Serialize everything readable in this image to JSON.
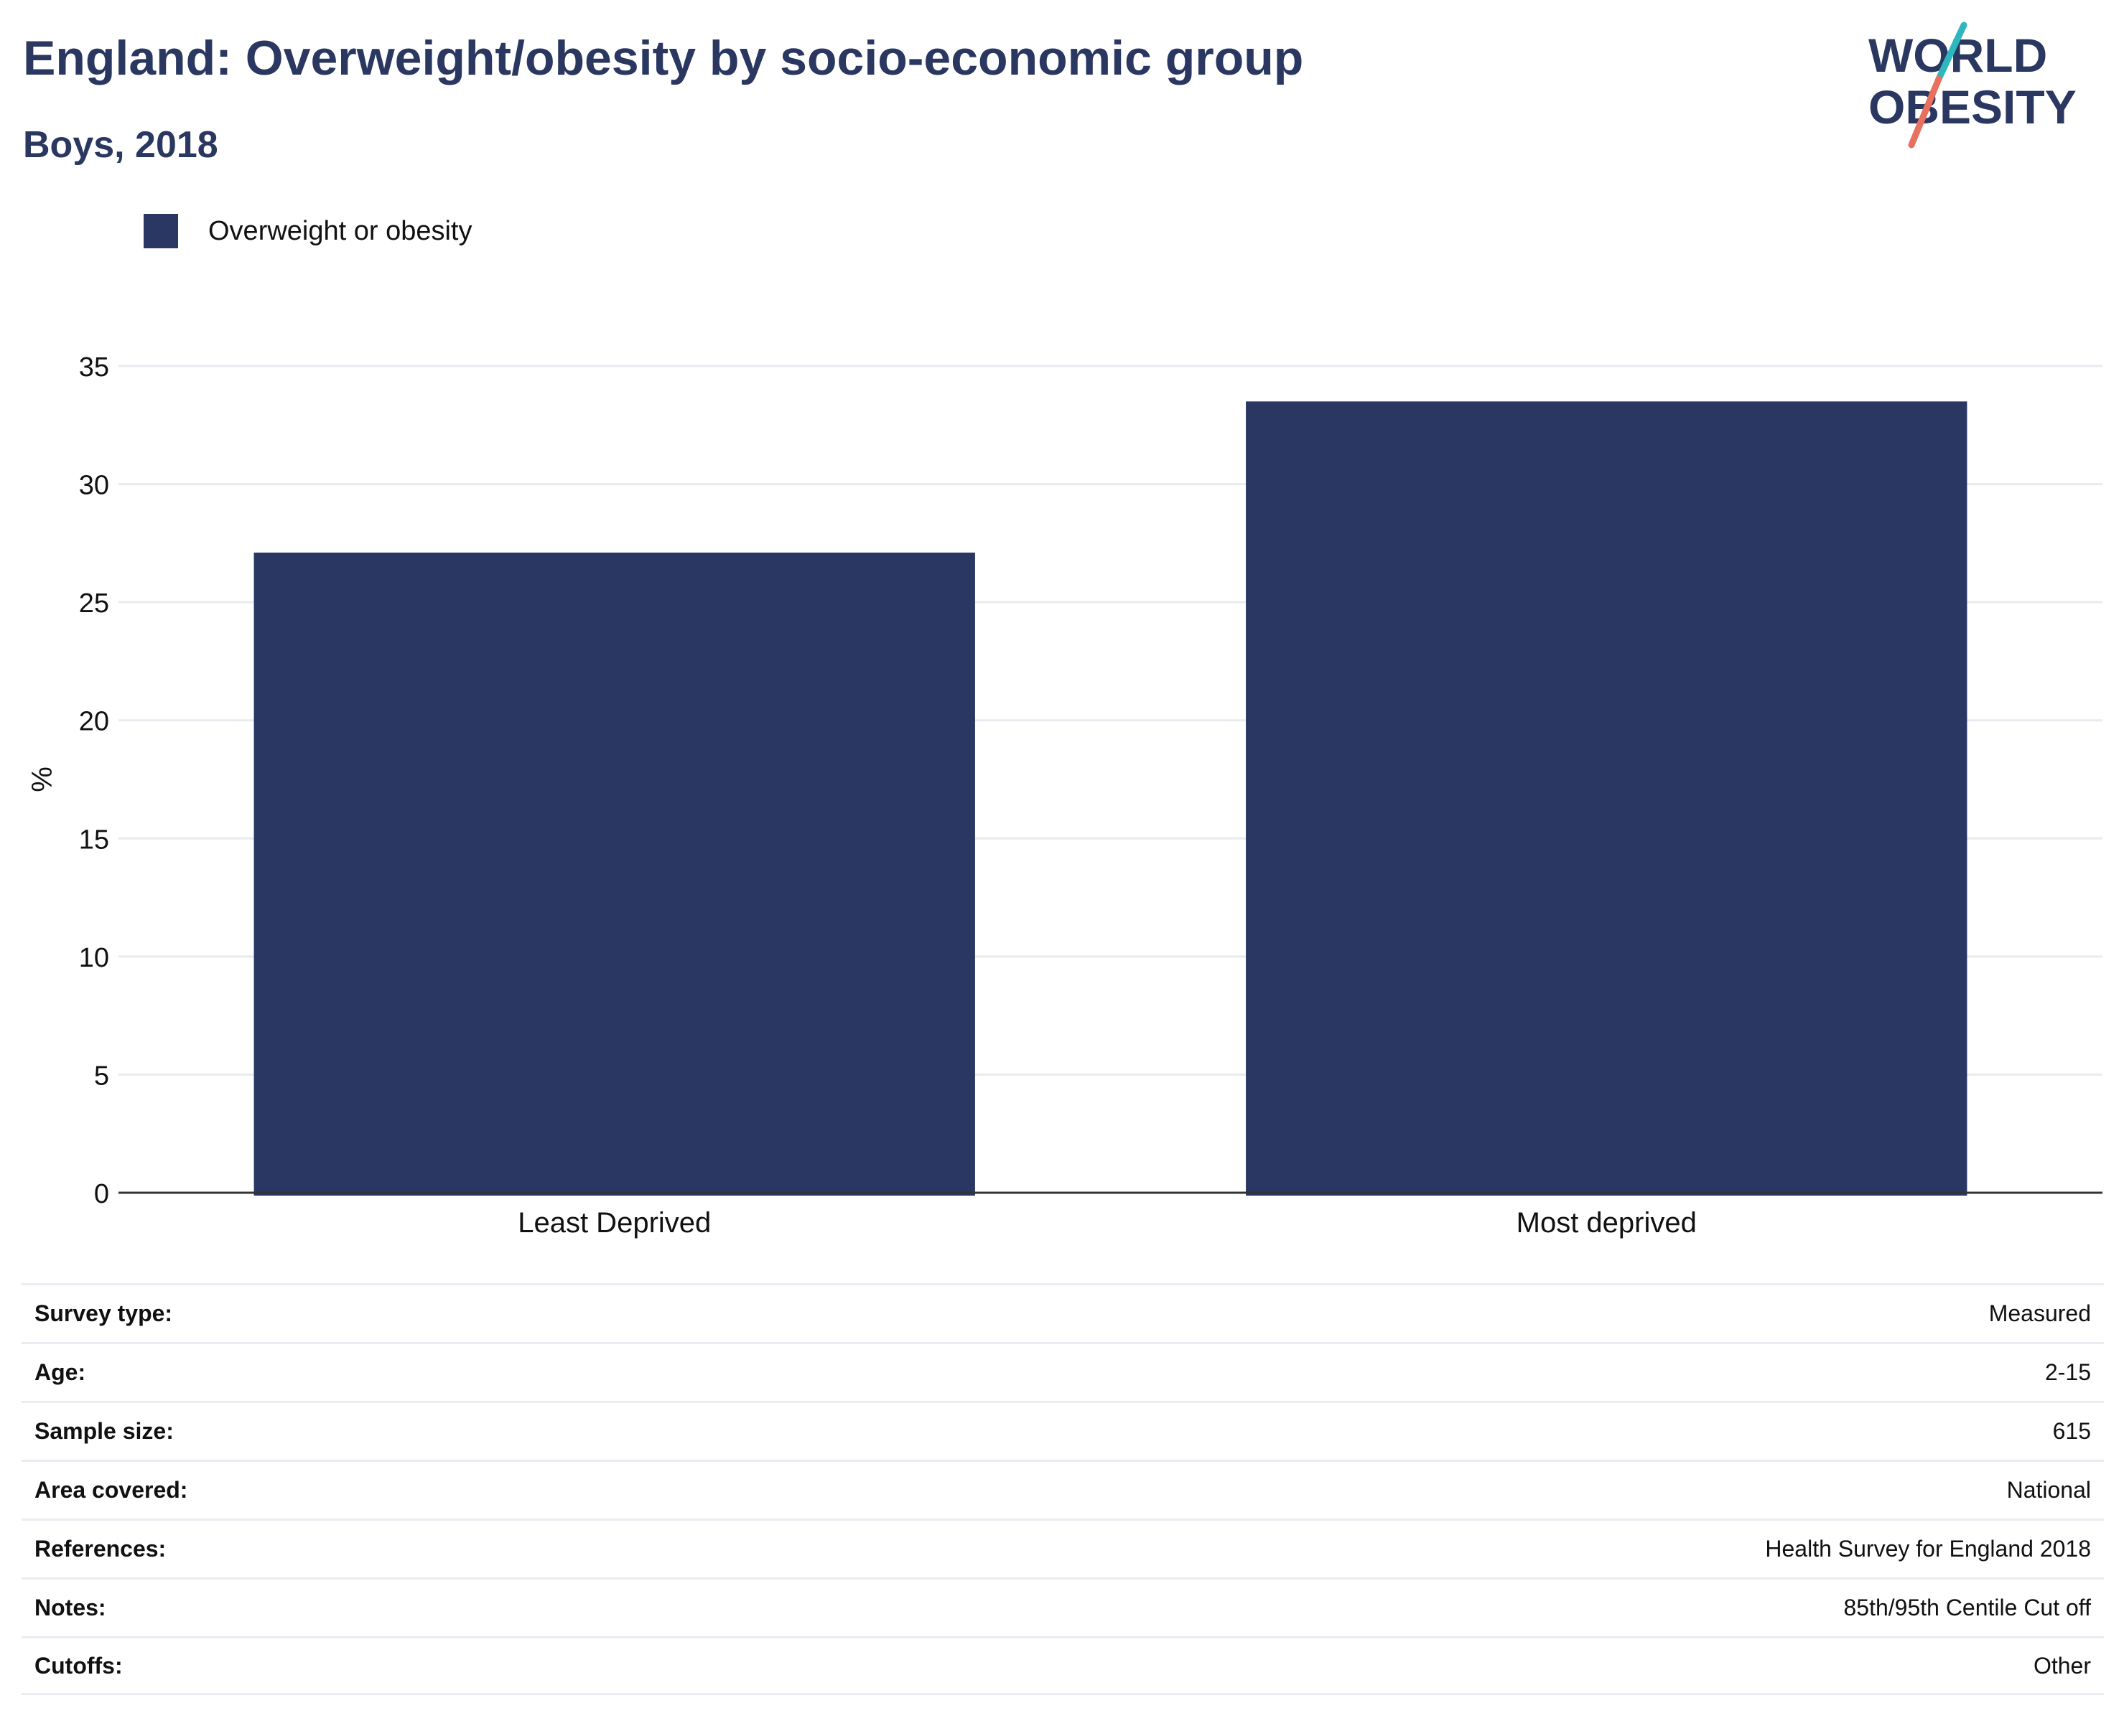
{
  "header": {
    "title": "England: Overweight/obesity by socio-economic group",
    "subtitle": "Boys, 2018"
  },
  "logo": {
    "line1": "WORLD",
    "line2": "OBESITY",
    "colors": {
      "text": "#2a3760",
      "teal": "#2fb7c0",
      "coral": "#e8705f"
    }
  },
  "legend": {
    "label": "Overweight or obesity",
    "color": "#2a3762"
  },
  "chart_data": {
    "type": "bar",
    "categories": [
      "Least Deprived",
      "Most deprived"
    ],
    "series": [
      {
        "name": "Overweight or obesity",
        "values": [
          27.1,
          33.5
        ],
        "color": "#2a3762"
      }
    ],
    "ylabel": "%",
    "xlabel": "",
    "ylim": [
      0,
      35
    ],
    "yticks": [
      0,
      5,
      10,
      15,
      20,
      25,
      30,
      35
    ],
    "grid": true,
    "legend_position": "top-left"
  },
  "metadata": [
    {
      "label": "Survey type:",
      "value": "Measured"
    },
    {
      "label": "Age:",
      "value": "2-15"
    },
    {
      "label": "Sample size:",
      "value": "615"
    },
    {
      "label": "Area covered:",
      "value": "National"
    },
    {
      "label": "References:",
      "value": "Health Survey for England 2018"
    },
    {
      "label": "Notes:",
      "value": "85th/95th Centile Cut off"
    },
    {
      "label": "Cutoffs:",
      "value": "Other"
    }
  ]
}
